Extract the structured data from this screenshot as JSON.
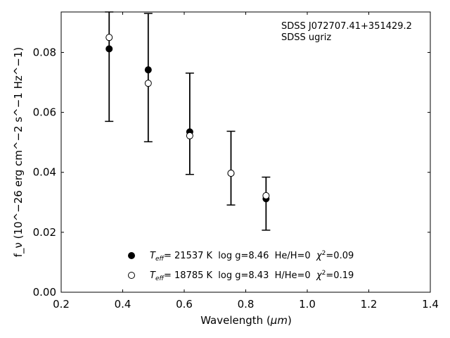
{
  "chart_data": {
    "type": "scatter",
    "xlabel_prefix": "Wavelength (",
    "xlabel_unit": "μm",
    "xlabel_suffix": ")",
    "ylabel_text": "f_ν (10^−26 erg cm^−2 s^−1 Hz^−1)",
    "xlim": [
      0.2,
      1.4
    ],
    "ylim": [
      0.0,
      0.0935
    ],
    "xticks": [
      0.2,
      0.4,
      0.6,
      0.8,
      1.0,
      1.2,
      1.4
    ],
    "xtick_labels": [
      "0.2",
      "0.4",
      "0.6",
      "0.8",
      "1.0",
      "1.2",
      "1.4"
    ],
    "yticks": [
      0.0,
      0.02,
      0.04,
      0.06,
      0.08
    ],
    "ytick_labels": [
      "0.00",
      "0.02",
      "0.04",
      "0.06",
      "0.08"
    ],
    "grid": false,
    "annotations": [
      "SDSS J072707.41+351429.2",
      "SDSS ugriz"
    ],
    "errorbars": [
      {
        "x": 0.356,
        "low": 0.057,
        "high": 0.0935
      },
      {
        "x": 0.483,
        "low": 0.0502,
        "high": 0.093
      },
      {
        "x": 0.618,
        "low": 0.0393,
        "high": 0.0731
      },
      {
        "x": 0.752,
        "low": 0.0291,
        "high": 0.0537
      },
      {
        "x": 0.866,
        "low": 0.0207,
        "high": 0.0384
      }
    ],
    "series": [
      {
        "marker": "filled",
        "color": "#000000",
        "x": [
          0.356,
          0.483,
          0.618,
          0.752,
          0.866
        ],
        "y": [
          0.0812,
          0.0742,
          0.0535,
          0.0397,
          0.0312
        ]
      },
      {
        "marker": "open",
        "color": "#000000",
        "x": [
          0.356,
          0.483,
          0.618,
          0.752,
          0.866
        ],
        "y": [
          0.085,
          0.0697,
          0.0522,
          0.0397,
          0.0322
        ]
      }
    ],
    "legend": {
      "placement": "lower-center",
      "entries": [
        {
          "marker": "filled",
          "teff_symbol": "T",
          "teff_sub": "eff",
          "text": "= 21537 K  log g=8.46  He/H=0  ",
          "chi_symbol": "χ",
          "chi_sup": "2",
          "chi_text": "=0.09"
        },
        {
          "marker": "open",
          "teff_symbol": "T",
          "teff_sub": "eff",
          "text": "= 18785 K  log g=8.43  H/He=0  ",
          "chi_symbol": "χ",
          "chi_sup": "2",
          "chi_text": "=0.19"
        }
      ]
    }
  }
}
